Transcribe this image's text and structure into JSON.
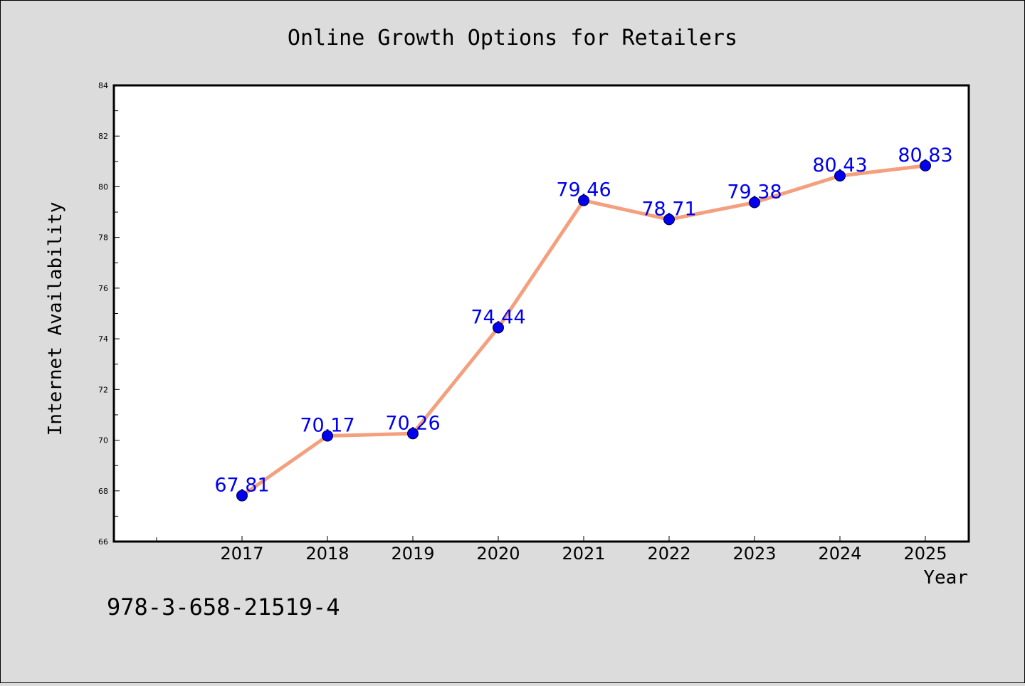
{
  "chart_data": {
    "type": "line",
    "title": "Online Growth Options for Retailers",
    "xlabel": "Year",
    "ylabel": "Internet Availability",
    "categories": [
      "2017",
      "2018",
      "2019",
      "2020",
      "2021",
      "2022",
      "2023",
      "2024",
      "2025"
    ],
    "series": [
      {
        "values": [
          67.81,
          70.17,
          70.26,
          74.44,
          79.46,
          78.71,
          79.38,
          80.43,
          80.83
        ]
      }
    ],
    "data_labels": [
      "67.81",
      "70.17",
      "70.26",
      "74.44",
      "79.46",
      "78.71",
      "79.38",
      "80.43",
      "80.83"
    ],
    "ylim": [
      66,
      84
    ],
    "yticks": [
      66,
      68,
      70,
      72,
      74,
      76,
      78,
      80,
      82,
      84
    ],
    "grid": false,
    "legend": false,
    "colors": {
      "background": "#dcdcdc",
      "plot_background": "#ffffff",
      "line": "#f4a07e",
      "marker": "#0000ee",
      "marker_edge": "#000033",
      "data_label": "#0000ee",
      "axis": "#000000"
    }
  },
  "footer": {
    "code": "978-3-658-21519-4"
  }
}
